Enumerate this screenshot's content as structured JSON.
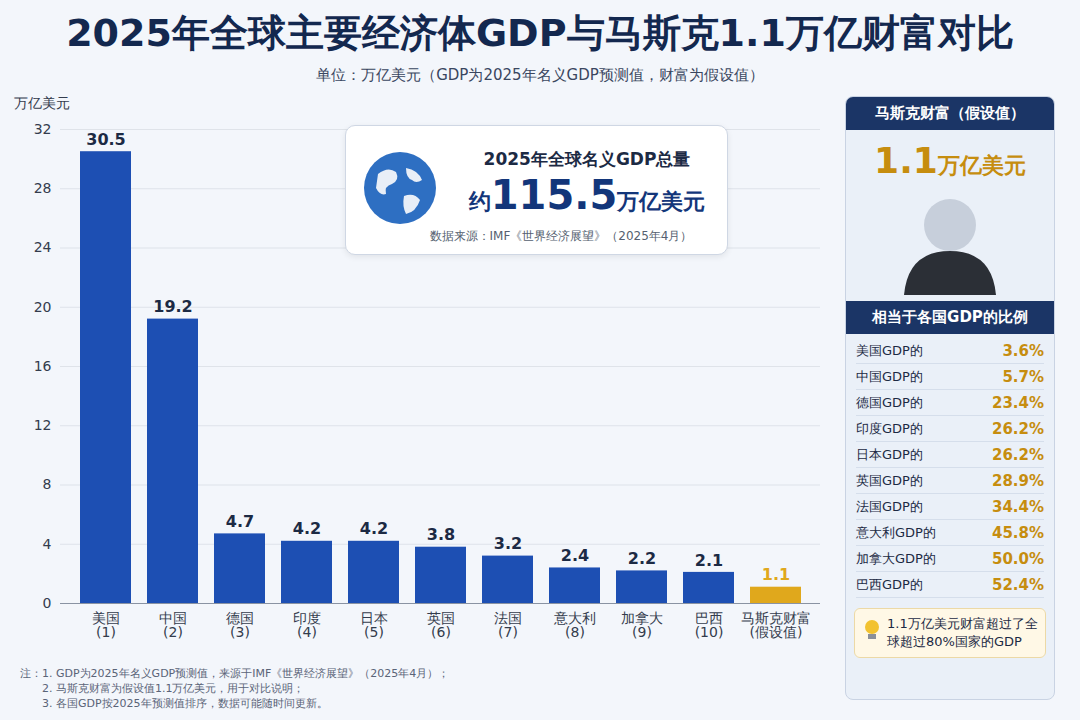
{
  "chart_data": {
    "type": "bar",
    "title": "2025年全球主要经济体GDP与马斯克1.1万亿财富对比",
    "subtitle": "单位：万亿美元（GDP为2025年名义GDP预测值，财富为假设值）",
    "y_label": "万亿美元",
    "categories": [
      "美国",
      "中国",
      "德国",
      "印度",
      "日本",
      "英国",
      "法国",
      "意大利",
      "加拿大",
      "巴西",
      "马斯克财富"
    ],
    "rank_labels": [
      "(1)",
      "(2)",
      "(3)",
      "(4)",
      "(5)",
      "(6)",
      "(7)",
      "(8)",
      "(9)",
      "(10)",
      "(假设值)"
    ],
    "values": [
      30.5,
      19.2,
      4.7,
      4.2,
      4.2,
      3.8,
      3.2,
      2.4,
      2.2,
      2.1,
      1.1
    ],
    "colors": [
      "#1d4fb3",
      "#1d4fb3",
      "#1d4fb3",
      "#1d4fb3",
      "#1d4fb3",
      "#1d4fb3",
      "#1d4fb3",
      "#1d4fb3",
      "#1d4fb3",
      "#1d4fb3",
      "#e0a81c"
    ],
    "ylim": [
      0,
      32
    ],
    "yticks": [
      0,
      4,
      8,
      12,
      16,
      20,
      24,
      28,
      32
    ],
    "grid": true,
    "data_labels": true
  },
  "info_box": {
    "title": "2025年全球名义GDP总量",
    "prefix": "约",
    "value": "115.5",
    "unit": "万亿美元",
    "source": "数据来源：IMF《世界经济展望》（2025年4月）"
  },
  "side_panel": {
    "title": "马斯克财富（假设值）",
    "wealth_value": "1.1",
    "wealth_unit": "万亿美元",
    "ratio_title": "相当于各国GDP的比例",
    "ratio_rows": [
      {
        "label": "美国GDP的",
        "ratio": "3.6%"
      },
      {
        "label": "中国GDP的",
        "ratio": "5.7%"
      },
      {
        "label": "德国GDP的",
        "ratio": "23.4%"
      },
      {
        "label": "印度GDP的",
        "ratio": "26.2%"
      },
      {
        "label": "日本GDP的",
        "ratio": "26.2%"
      },
      {
        "label": "英国GDP的",
        "ratio": "28.9%"
      },
      {
        "label": "法国GDP的",
        "ratio": "34.4%"
      },
      {
        "label": "意大利GDP的",
        "ratio": "45.8%"
      },
      {
        "label": "加拿大GDP的",
        "ratio": "50.0%"
      },
      {
        "label": "巴西GDP的",
        "ratio": "52.4%"
      }
    ],
    "footer": "1.1万亿美元财富超过了全球超过80%国家的GDP"
  },
  "notes_label": "注：",
  "notes": [
    "1. GDP为2025年名义GDP预测值，来源于IMF《世界经济展望》（2025年4月）；",
    "2. 马斯克财富为假设值1.1万亿美元，用于对比说明；",
    "3. 各国GDP按2025年预测值排序，数据可能随时间更新。"
  ]
}
